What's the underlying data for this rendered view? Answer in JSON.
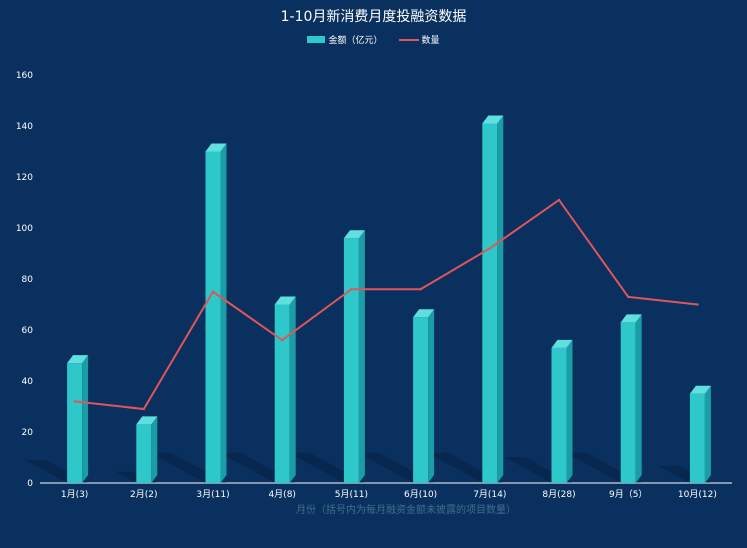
{
  "title": "1-10月新消费月度投融资数据",
  "legend": {
    "bar_label": "金额（亿元）",
    "line_label": "数量"
  },
  "colors": {
    "background": "#0a3060",
    "bar_front": "#2ec8cb",
    "bar_side": "#1a9da4",
    "bar_top": "#5fe0df",
    "line": "#e0555a"
  },
  "chart_data": {
    "type": "bar",
    "title": "1-10月新消费月度投融资数据",
    "xlabel": "月份（括号内为每月融资金额未披露的项目数量）",
    "ylabel": "",
    "ylim": [
      0,
      160
    ],
    "yticks": [
      0,
      20,
      40,
      60,
      80,
      100,
      120,
      140,
      160
    ],
    "categories": [
      "1月(3)",
      "2月(2)",
      "3月(11)",
      "4月(8)",
      "5月(11)",
      "6月(10)",
      "7月(14)",
      "8月(28)",
      "9月（5）",
      "10月(12)"
    ],
    "series": [
      {
        "name": "金额（亿元）",
        "type": "bar",
        "values": [
          47,
          23,
          130,
          70,
          96,
          65,
          141,
          53,
          63,
          35
        ]
      },
      {
        "name": "数量",
        "type": "line",
        "values": [
          32,
          29,
          75,
          56,
          76,
          76,
          92,
          111,
          73,
          70
        ]
      }
    ],
    "grid": false,
    "legend_position": "top-center"
  }
}
